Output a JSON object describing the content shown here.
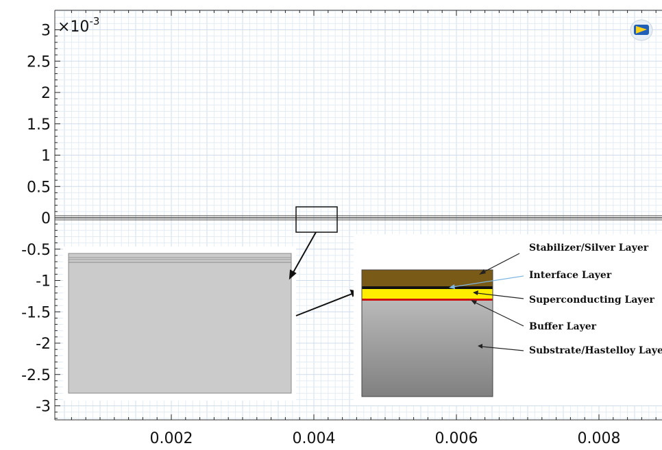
{
  "plot": {
    "exponent_label": "×10",
    "exponent_power": "-3",
    "y_ticks": [
      {
        "value": 3,
        "label": "3"
      },
      {
        "value": 2.5,
        "label": "2.5"
      },
      {
        "value": 2,
        "label": "2"
      },
      {
        "value": 1.5,
        "label": "1.5"
      },
      {
        "value": 1,
        "label": "1"
      },
      {
        "value": 0.5,
        "label": "0.5"
      },
      {
        "value": 0,
        "label": "0"
      },
      {
        "value": -0.5,
        "label": "-0.5"
      },
      {
        "value": -1,
        "label": "-1"
      },
      {
        "value": -1.5,
        "label": "-1.5"
      },
      {
        "value": -2,
        "label": "-2"
      },
      {
        "value": -2.5,
        "label": "-2.5"
      },
      {
        "value": -3,
        "label": "-3"
      }
    ],
    "x_ticks": [
      {
        "value": 0.002,
        "label": "0.002"
      },
      {
        "value": 0.004,
        "label": "0.004"
      },
      {
        "value": 0.006,
        "label": "0.006"
      },
      {
        "value": 0.008,
        "label": "0.008"
      }
    ],
    "x_range": [
      0.0005,
      0.009
    ],
    "y_range": [
      -3.3,
      3.3
    ],
    "grid": true
  },
  "colors": {
    "grid_minor": "#e3ecf5",
    "grid_major": "#cfdceb",
    "stabilizer": "#7a5a17",
    "interface": "#111111",
    "superconducting": "#ffee00",
    "buffer": "#cc1111",
    "substrate_top": "#b9b9b9",
    "substrate_bottom": "#808080",
    "zoom_grey": "#cbcbcb"
  },
  "layers": [
    {
      "key": "stabilizer",
      "label": "Stabilizer/Silver Layer"
    },
    {
      "key": "interface",
      "label": "Interface Layer"
    },
    {
      "key": "superconducting",
      "label": "Superconducting Layer"
    },
    {
      "key": "buffer",
      "label": "Buffer Layer"
    },
    {
      "key": "substrate",
      "label": "Substrate/Hastelloy Layer"
    }
  ],
  "toolbar": {
    "icon": "comsol-logo-icon"
  }
}
